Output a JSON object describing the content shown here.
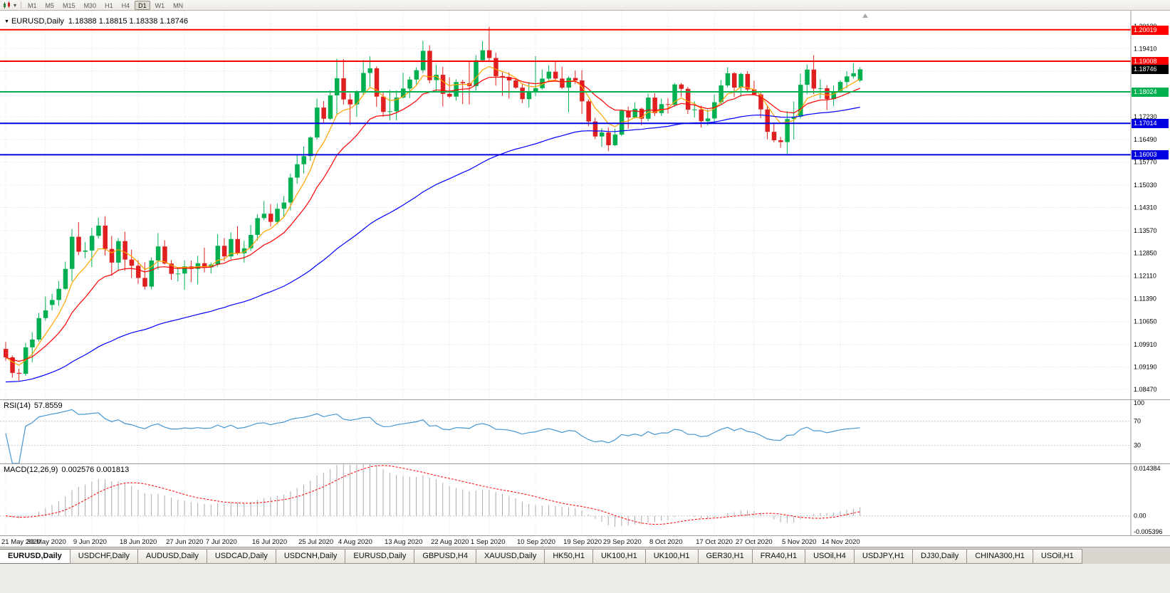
{
  "toolbar": {
    "chart_type_icon": "candlestick-chart-icon",
    "timeframes": [
      "M1",
      "M5",
      "M15",
      "M30",
      "H1",
      "H4",
      "D1",
      "W1",
      "MN"
    ],
    "active_timeframe": "D1"
  },
  "chart_header": {
    "collapse_icon": "▼",
    "title": "EURUSD,Daily",
    "ohlc": "1.18388 1.18815 1.18338 1.18746"
  },
  "colors": {
    "grid": "#dfdfdf",
    "bull": "#00b050",
    "bear": "#e02020",
    "axis_line": "#9c9c9c"
  },
  "chart_data": {
    "type": "candlestick",
    "symbol": "EURUSD",
    "timeframe": "Daily",
    "y_min": 1.0815,
    "y_max": 1.2063,
    "y_ticks": [
      1.2013,
      1.1941,
      1.1869,
      1.1795,
      1.1723,
      1.1649,
      1.1577,
      1.1503,
      1.1431,
      1.1357,
      1.1285,
      1.1211,
      1.1139,
      1.1065,
      1.0991,
      1.0919,
      1.0847
    ],
    "x_labels": [
      {
        "label": "21 May 2020",
        "index": 0
      },
      {
        "label": "30 May 2020",
        "index": 6
      },
      {
        "label": "9 Jun 2020",
        "index": 13
      },
      {
        "label": "18 Jun 2020",
        "index": 20
      },
      {
        "label": "27 Jun 2020",
        "index": 27
      },
      {
        "label": "7 Jul 2020",
        "index": 33
      },
      {
        "label": "16 Jul 2020",
        "index": 40
      },
      {
        "label": "25 Jul 2020",
        "index": 47
      },
      {
        "label": "4 Aug 2020",
        "index": 53
      },
      {
        "label": "13 Aug 2020",
        "index": 60
      },
      {
        "label": "22 Aug 2020",
        "index": 67
      },
      {
        "label": "1 Sep 2020",
        "index": 73
      },
      {
        "label": "10 Sep 2020",
        "index": 80
      },
      {
        "label": "19 Sep 2020",
        "index": 87
      },
      {
        "label": "29 Sep 2020",
        "index": 93
      },
      {
        "label": "8 Oct 2020",
        "index": 100
      },
      {
        "label": "17 Oct 2020",
        "index": 107
      },
      {
        "label": "27 Oct 2020",
        "index": 113
      },
      {
        "label": "5 Nov 2020",
        "index": 120
      },
      {
        "label": "14 Nov 2020",
        "index": 126
      }
    ],
    "candles": [
      [
        1.0977,
        1.0999,
        1.0939,
        1.095
      ],
      [
        1.095,
        1.0956,
        1.0885,
        1.09
      ],
      [
        1.09,
        1.0913,
        1.0871,
        1.0897
      ],
      [
        1.0897,
        1.0996,
        1.0891,
        1.0982
      ],
      [
        1.0982,
        1.1031,
        1.0934,
        1.1007
      ],
      [
        1.1007,
        1.1093,
        1.1001,
        1.1076
      ],
      [
        1.1076,
        1.1145,
        1.1068,
        1.1101
      ],
      [
        1.1118,
        1.1154,
        1.1101,
        1.1134
      ],
      [
        1.1134,
        1.1195,
        1.1115,
        1.117
      ],
      [
        1.117,
        1.1257,
        1.1167,
        1.1234
      ],
      [
        1.1234,
        1.1362,
        1.1194,
        1.1337
      ],
      [
        1.1337,
        1.1384,
        1.1278,
        1.1289
      ],
      [
        1.1289,
        1.132,
        1.1268,
        1.1293
      ],
      [
        1.1293,
        1.1366,
        1.124,
        1.134
      ],
      [
        1.134,
        1.1398,
        1.1331,
        1.1373
      ],
      [
        1.1373,
        1.1403,
        1.1277,
        1.1298
      ],
      [
        1.1298,
        1.134,
        1.1212,
        1.1254
      ],
      [
        1.1254,
        1.1333,
        1.1227,
        1.1323
      ],
      [
        1.1323,
        1.1353,
        1.1228,
        1.1264
      ],
      [
        1.1264,
        1.1296,
        1.1204,
        1.1244
      ],
      [
        1.1244,
        1.1262,
        1.1186,
        1.1205
      ],
      [
        1.1205,
        1.1255,
        1.1168,
        1.1177
      ],
      [
        1.1177,
        1.1271,
        1.1168,
        1.1261
      ],
      [
        1.1261,
        1.1349,
        1.1232,
        1.1306
      ],
      [
        1.1306,
        1.1326,
        1.1248,
        1.1251
      ],
      [
        1.1251,
        1.1262,
        1.1199,
        1.1218
      ],
      [
        1.1218,
        1.1239,
        1.1194,
        1.1219
      ],
      [
        1.1219,
        1.1261,
        1.1167,
        1.1242
      ],
      [
        1.1242,
        1.1261,
        1.1191,
        1.1234
      ],
      [
        1.1234,
        1.1276,
        1.1184,
        1.1252
      ],
      [
        1.1252,
        1.1302,
        1.1223,
        1.1239
      ],
      [
        1.1239,
        1.1254,
        1.1219,
        1.1248
      ],
      [
        1.1248,
        1.1345,
        1.1241,
        1.1308
      ],
      [
        1.1308,
        1.1333,
        1.1259,
        1.1274
      ],
      [
        1.1274,
        1.1351,
        1.1265,
        1.133
      ],
      [
        1.133,
        1.1371,
        1.1279,
        1.1284
      ],
      [
        1.1284,
        1.1324,
        1.1254,
        1.13
      ],
      [
        1.13,
        1.1375,
        1.1292,
        1.1343
      ],
      [
        1.1343,
        1.1409,
        1.1325,
        1.1397
      ],
      [
        1.1397,
        1.1452,
        1.139,
        1.1411
      ],
      [
        1.1411,
        1.1442,
        1.137,
        1.1385
      ],
      [
        1.1385,
        1.1444,
        1.1377,
        1.1427
      ],
      [
        1.1427,
        1.1468,
        1.1402,
        1.1447
      ],
      [
        1.1447,
        1.154,
        1.1422,
        1.1527
      ],
      [
        1.1527,
        1.1601,
        1.1507,
        1.157
      ],
      [
        1.157,
        1.1627,
        1.154,
        1.1596
      ],
      [
        1.1596,
        1.166,
        1.1581,
        1.1656
      ],
      [
        1.1656,
        1.1781,
        1.1649,
        1.1752
      ],
      [
        1.1752,
        1.1773,
        1.1701,
        1.1716
      ],
      [
        1.1716,
        1.1807,
        1.1712,
        1.1791
      ],
      [
        1.1791,
        1.1909,
        1.173,
        1.1846
      ],
      [
        1.1846,
        1.1908,
        1.1762,
        1.1778
      ],
      [
        1.1778,
        1.1797,
        1.1696,
        1.1762
      ],
      [
        1.1762,
        1.1807,
        1.1722,
        1.1803
      ],
      [
        1.1803,
        1.1905,
        1.1793,
        1.1863
      ],
      [
        1.1863,
        1.1916,
        1.1819,
        1.1878
      ],
      [
        1.1878,
        1.1884,
        1.1754,
        1.1787
      ],
      [
        1.1787,
        1.1804,
        1.1722,
        1.1738
      ],
      [
        1.1738,
        1.1808,
        1.1711,
        1.174
      ],
      [
        1.174,
        1.1807,
        1.1711,
        1.1784
      ],
      [
        1.1784,
        1.1864,
        1.1781,
        1.1813
      ],
      [
        1.1813,
        1.1851,
        1.1782,
        1.1842
      ],
      [
        1.1842,
        1.1881,
        1.1826,
        1.1872
      ],
      [
        1.1872,
        1.1966,
        1.1863,
        1.1934
      ],
      [
        1.1934,
        1.1952,
        1.183,
        1.184
      ],
      [
        1.184,
        1.1889,
        1.1804,
        1.1857
      ],
      [
        1.1857,
        1.1883,
        1.1755,
        1.1796
      ],
      [
        1.1796,
        1.1849,
        1.1783,
        1.1787
      ],
      [
        1.1787,
        1.1843,
        1.1774,
        1.1834
      ],
      [
        1.1834,
        1.1841,
        1.1763,
        1.183
      ],
      [
        1.183,
        1.1901,
        1.1762,
        1.1821
      ],
      [
        1.1821,
        1.192,
        1.1807,
        1.1904
      ],
      [
        1.1904,
        1.1965,
        1.1898,
        1.1936
      ],
      [
        1.1936,
        1.2011,
        1.1899,
        1.1911
      ],
      [
        1.1911,
        1.1928,
        1.1822,
        1.1853
      ],
      [
        1.1853,
        1.1865,
        1.1789,
        1.185
      ],
      [
        1.185,
        1.1865,
        1.1781,
        1.1839
      ],
      [
        1.1839,
        1.1845,
        1.1812,
        1.1816
      ],
      [
        1.1816,
        1.1827,
        1.1766,
        1.1779
      ],
      [
        1.1779,
        1.1834,
        1.1753,
        1.1802
      ],
      [
        1.1802,
        1.1917,
        1.1789,
        1.1814
      ],
      [
        1.1814,
        1.1874,
        1.1809,
        1.1845
      ],
      [
        1.1845,
        1.1888,
        1.1834,
        1.1867
      ],
      [
        1.1867,
        1.19,
        1.1838,
        1.1845
      ],
      [
        1.1845,
        1.1883,
        1.1811,
        1.1816
      ],
      [
        1.1816,
        1.1852,
        1.1737,
        1.1847
      ],
      [
        1.1847,
        1.1871,
        1.1827,
        1.1839
      ],
      [
        1.1839,
        1.1872,
        1.1731,
        1.1772
      ],
      [
        1.1772,
        1.1778,
        1.1692,
        1.1707
      ],
      [
        1.1707,
        1.1719,
        1.1651,
        1.1659
      ],
      [
        1.1659,
        1.1686,
        1.1626,
        1.1672
      ],
      [
        1.1672,
        1.1688,
        1.1612,
        1.1631
      ],
      [
        1.1631,
        1.1684,
        1.1628,
        1.1665
      ],
      [
        1.1665,
        1.1745,
        1.166,
        1.1742
      ],
      [
        1.1742,
        1.1755,
        1.1684,
        1.172
      ],
      [
        1.172,
        1.1769,
        1.1717,
        1.1748
      ],
      [
        1.1748,
        1.1752,
        1.1695,
        1.1716
      ],
      [
        1.1716,
        1.1797,
        1.1708,
        1.1784
      ],
      [
        1.1784,
        1.1798,
        1.1725,
        1.1734
      ],
      [
        1.1734,
        1.1781,
        1.1725,
        1.1763
      ],
      [
        1.1763,
        1.1782,
        1.1733,
        1.1761
      ],
      [
        1.1761,
        1.1831,
        1.1755,
        1.1826
      ],
      [
        1.1826,
        1.1831,
        1.1786,
        1.1812
      ],
      [
        1.1812,
        1.1818,
        1.1731,
        1.1745
      ],
      [
        1.1745,
        1.1772,
        1.172,
        1.1746
      ],
      [
        1.1746,
        1.1758,
        1.1688,
        1.1708
      ],
      [
        1.1708,
        1.1746,
        1.1694,
        1.1717
      ],
      [
        1.1717,
        1.1794,
        1.1703,
        1.1769
      ],
      [
        1.1769,
        1.184,
        1.176,
        1.1823
      ],
      [
        1.1823,
        1.1881,
        1.1817,
        1.1862
      ],
      [
        1.1862,
        1.1866,
        1.1786,
        1.1816
      ],
      [
        1.1816,
        1.1864,
        1.1786,
        1.186
      ],
      [
        1.186,
        1.1869,
        1.1803,
        1.181
      ],
      [
        1.181,
        1.1838,
        1.1793,
        1.1794
      ],
      [
        1.1794,
        1.18,
        1.1718,
        1.1746
      ],
      [
        1.1746,
        1.1759,
        1.165,
        1.1674
      ],
      [
        1.1674,
        1.1704,
        1.164,
        1.1647
      ],
      [
        1.1647,
        1.1658,
        1.1623,
        1.1641
      ],
      [
        1.1641,
        1.174,
        1.1603,
        1.1715
      ],
      [
        1.1715,
        1.1771,
        1.165,
        1.1723
      ],
      [
        1.1723,
        1.1861,
        1.1717,
        1.1825
      ],
      [
        1.1825,
        1.189,
        1.1795,
        1.1874
      ],
      [
        1.1874,
        1.192,
        1.1795,
        1.1813
      ],
      [
        1.1813,
        1.1843,
        1.1781,
        1.1814
      ],
      [
        1.1814,
        1.1824,
        1.1745,
        1.1779
      ],
      [
        1.1779,
        1.1823,
        1.1757,
        1.1804
      ],
      [
        1.1804,
        1.1839,
        1.1799,
        1.1834
      ],
      [
        1.1834,
        1.1869,
        1.1814,
        1.1852
      ],
      [
        1.1852,
        1.1894,
        1.1845,
        1.1862
      ],
      [
        1.18388,
        1.18815,
        1.18338,
        1.18746
      ]
    ],
    "levels": [
      {
        "price": 1.20019,
        "label": "1.20019",
        "color": "#ff0000",
        "width": 2
      },
      {
        "price": 1.19008,
        "label": "1.19008",
        "color": "#ff0000",
        "width": 2
      },
      {
        "price": 1.18024,
        "label": "1.18024",
        "color": "#00b050",
        "width": 2
      },
      {
        "price": 1.17014,
        "label": "1.17014",
        "color": "#0000e0",
        "width": 2
      },
      {
        "price": 1.16003,
        "label": "1.16003",
        "color": "#0000e0",
        "width": 2
      }
    ],
    "current_price": {
      "value": "1.18746",
      "bg": "#000000"
    },
    "moving_averages": [
      {
        "name": "fast",
        "period": 6,
        "color": "#ffa200"
      },
      {
        "name": "medium",
        "period": 14,
        "color": "#ff0000"
      },
      {
        "name": "slow",
        "period": 60,
        "color": "#0000ff",
        "seed_low": true
      }
    ],
    "indicators": {
      "rsi": {
        "title": "RSI(14)",
        "value": "57.8559",
        "period": 14,
        "levels": [
          100,
          70,
          30
        ],
        "dotted_levels": [
          70,
          30
        ],
        "color": "#4596d2",
        "y_min": 0,
        "y_max": 105
      },
      "macd": {
        "title": "MACD(12,26,9)",
        "values": "0.002576 0.001813",
        "fast": 12,
        "slow": 26,
        "signal": 9,
        "y_max": 0.014384,
        "y_min": -0.005396,
        "axis_labels": [
          "0.014384",
          "0.00",
          "-0.005396"
        ],
        "histogram_color": "#ababab",
        "signal_color": "#ff0000"
      }
    }
  },
  "tabs": [
    "EURUSD,Daily",
    "USDCHF,Daily",
    "AUDUSD,Daily",
    "USDCAD,Daily",
    "USDCNH,Daily",
    "EURUSD,Daily",
    "GBPUSD,H4",
    "XAUUSD,Daily",
    "HK50,H1",
    "UK100,H1",
    "UK100,H1",
    "GER30,H1",
    "FRA40,H1",
    "USOil,H4",
    "USDJPY,H1",
    "DJ30,Daily",
    "CHINA300,H1",
    "USOil,H1"
  ],
  "active_tab_index": 0
}
